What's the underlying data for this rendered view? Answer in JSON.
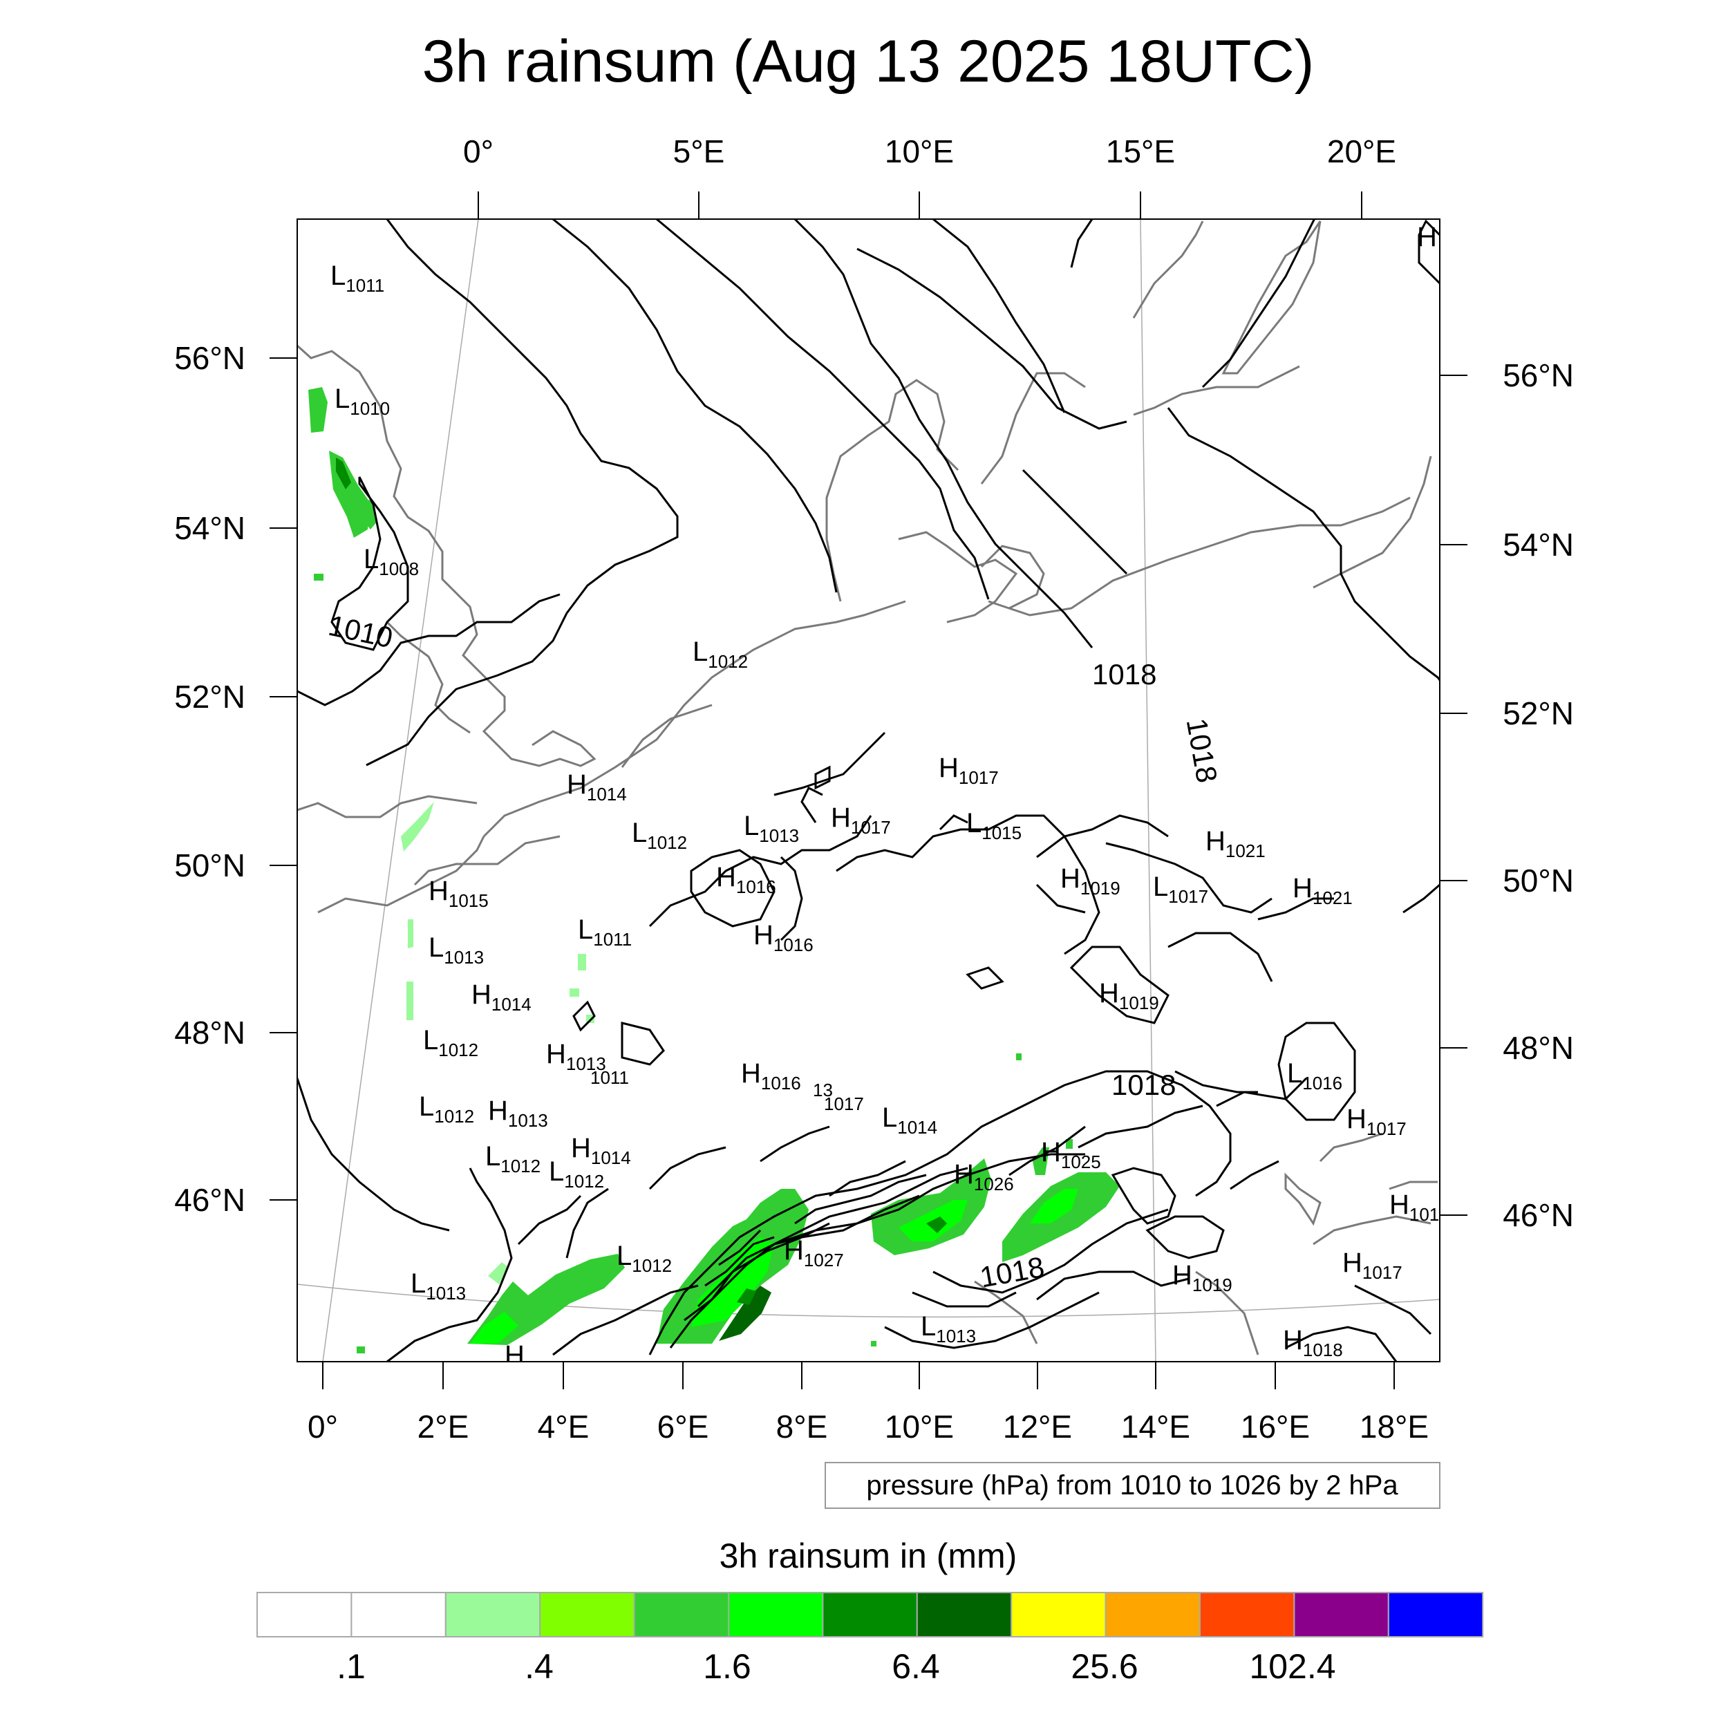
{
  "title": "3h rainsum (Aug 13 2025 18UTC)",
  "top_lon_labels": [
    "0°",
    "5°E",
    "10°E",
    "15°E",
    "20°E"
  ],
  "bottom_lon_labels": [
    "0°",
    "2°E",
    "4°E",
    "6°E",
    "8°E",
    "10°E",
    "12°E",
    "14°E",
    "16°E",
    "18°E"
  ],
  "left_lat_labels": [
    "56°N",
    "54°N",
    "52°N",
    "50°N",
    "48°N",
    "46°N"
  ],
  "right_lat_labels": [
    "56°N",
    "54°N",
    "52°N",
    "50°N",
    "48°N",
    "46°N"
  ],
  "pressure_note": "pressure (hPa) from 1010 to 1026 by 2 hPa",
  "colorbar_title": "3h rainsum in (mm)",
  "colorbar_colors": [
    "#ffffff",
    "#ffffff",
    "#9afa9a",
    "#80ff00",
    "#32cd32",
    "#00ff00",
    "#008b00",
    "#006400",
    "#ffff00",
    "#ffa500",
    "#ff4500",
    "#8b008b",
    "#0000ff"
  ],
  "colorbar_labels": [
    ".1",
    ".4",
    "1.6",
    "6.4",
    "25.6",
    "102.4"
  ],
  "isobar_labels": [
    "1010",
    "1018",
    "1018",
    "1018",
    "1018"
  ],
  "pressure_centers": [
    {
      "t": "L",
      "v": "1011"
    },
    {
      "t": "L",
      "v": "1010"
    },
    {
      "t": "L",
      "v": "1008"
    },
    {
      "t": "L",
      "v": "1012"
    },
    {
      "t": "H",
      "v": "1014"
    },
    {
      "t": "L",
      "v": "1012"
    },
    {
      "t": "L",
      "v": "1013"
    },
    {
      "t": "H",
      "v": "1017"
    },
    {
      "t": "H",
      "v": "1017"
    },
    {
      "t": "L",
      "v": "1015"
    },
    {
      "t": "H",
      "v": "1016"
    },
    {
      "t": "H",
      "v": "1016"
    },
    {
      "t": "H",
      "v": "1015"
    },
    {
      "t": "L",
      "v": "1013"
    },
    {
      "t": "L",
      "v": "1011"
    },
    {
      "t": "H",
      "v": "1014"
    },
    {
      "t": "L",
      "v": "1012"
    },
    {
      "t": "H",
      "v": "1013"
    },
    {
      "t": "L",
      "v": "1012"
    },
    {
      "t": "H",
      "v": "1013"
    },
    {
      "t": "L",
      "v": "1012"
    },
    {
      "t": "H",
      "v": "1014"
    },
    {
      "t": "L",
      "v": "1012"
    },
    {
      "t": "H",
      "v": "1016"
    },
    {
      "t": "L",
      "v": "1014"
    },
    {
      "t": "H",
      "v": "1026"
    },
    {
      "t": "H",
      "v": "1025"
    },
    {
      "t": "H",
      "v": "1027"
    },
    {
      "t": "L",
      "v": "1012"
    },
    {
      "t": "L",
      "v": "1013"
    },
    {
      "t": "L",
      "v": "1013"
    },
    {
      "t": "H",
      "v": "1019"
    },
    {
      "t": "L",
      "v": "1017"
    },
    {
      "t": "H",
      "v": "1021"
    },
    {
      "t": "H",
      "v": "1021"
    },
    {
      "t": "H",
      "v": "1019"
    },
    {
      "t": "L",
      "v": "1016"
    },
    {
      "t": "H",
      "v": "1017"
    },
    {
      "t": "H",
      "v": "101"
    },
    {
      "t": "H",
      "v": "1017"
    },
    {
      "t": "H",
      "v": "1019"
    },
    {
      "t": "H",
      "v": "1018"
    },
    {
      "t": "H",
      "v": ""
    },
    {
      "t": "H",
      "v": ""
    }
  ],
  "fragment_labels": [
    "13",
    "1017",
    "1011"
  ]
}
